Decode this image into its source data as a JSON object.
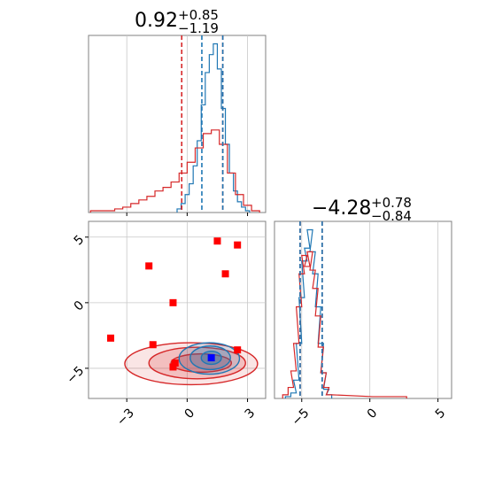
{
  "chart_data": [
    {
      "type": "histogram",
      "panel": "marginal-x",
      "title": {
        "value": "0.92",
        "upper": "+0.85",
        "lower": "−1.19"
      },
      "xlim": [
        -4.9,
        3.9
      ],
      "grid": true,
      "x_ticks": [
        -3,
        0,
        3
      ],
      "series": [
        {
          "color": "#1f77b4",
          "style": "step",
          "bins": [
            [
              -0.4,
              0.02
            ],
            [
              -0.2,
              0.05
            ],
            [
              0.0,
              0.1
            ],
            [
              0.2,
              0.16
            ],
            [
              0.4,
              0.26
            ],
            [
              0.6,
              0.4
            ],
            [
              0.8,
              0.6
            ],
            [
              1.0,
              0.78
            ],
            [
              1.2,
              0.88
            ],
            [
              1.4,
              0.94
            ],
            [
              1.6,
              0.8
            ],
            [
              1.8,
              0.58
            ],
            [
              2.0,
              0.38
            ],
            [
              2.2,
              0.22
            ],
            [
              2.4,
              0.12
            ],
            [
              2.6,
              0.06
            ],
            [
              2.8,
              0.03
            ],
            [
              3.0,
              0.01
            ]
          ]
        },
        {
          "color": "#d62728",
          "style": "step",
          "bins": [
            [
              -4.6,
              0.01
            ],
            [
              -4.2,
              0.01
            ],
            [
              -3.8,
              0.01
            ],
            [
              -3.4,
              0.02
            ],
            [
              -3.0,
              0.03
            ],
            [
              -2.6,
              0.05
            ],
            [
              -2.2,
              0.07
            ],
            [
              -1.8,
              0.09
            ],
            [
              -1.4,
              0.12
            ],
            [
              -1.0,
              0.14
            ],
            [
              -0.6,
              0.17
            ],
            [
              -0.2,
              0.22
            ],
            [
              0.2,
              0.28
            ],
            [
              0.6,
              0.36
            ],
            [
              1.0,
              0.44
            ],
            [
              1.4,
              0.46
            ],
            [
              1.8,
              0.38
            ],
            [
              2.2,
              0.22
            ],
            [
              2.6,
              0.1
            ],
            [
              3.0,
              0.04
            ],
            [
              3.4,
              0.01
            ]
          ]
        }
      ],
      "quantile_lines": [
        {
          "x": -0.27,
          "color": "#d62728"
        },
        {
          "x": 0.73,
          "color": "#1f77b4"
        },
        {
          "x": 1.77,
          "color": "#d62728"
        },
        {
          "x": 1.77,
          "color": "#1f77b4"
        }
      ]
    },
    {
      "type": "histogram",
      "panel": "marginal-y",
      "title": {
        "value": "−4.28",
        "upper": "+0.78",
        "lower": "−0.84"
      },
      "xlim": [
        -7.0,
        6.0
      ],
      "grid": true,
      "x_ticks": [
        -5,
        0,
        5
      ],
      "series": [
        {
          "color": "#1f77b4",
          "style": "step",
          "bins": [
            [
              -6.0,
              0.01
            ],
            [
              -5.6,
              0.03
            ],
            [
              -5.4,
              0.1
            ],
            [
              -5.2,
              0.3
            ],
            [
              -5.0,
              0.55
            ],
            [
              -4.8,
              0.75
            ],
            [
              -4.6,
              0.82
            ],
            [
              -4.4,
              0.92
            ],
            [
              -4.2,
              0.8
            ],
            [
              -4.0,
              0.68
            ],
            [
              -3.8,
              0.5
            ],
            [
              -3.6,
              0.3
            ],
            [
              -3.4,
              0.14
            ],
            [
              -3.2,
              0.05
            ],
            [
              -3.0,
              0.02
            ]
          ]
        },
        {
          "color": "#d62728",
          "style": "step",
          "bins": [
            [
              -6.2,
              0.02
            ],
            [
              -5.8,
              0.06
            ],
            [
              -5.6,
              0.15
            ],
            [
              -5.4,
              0.3
            ],
            [
              -5.2,
              0.5
            ],
            [
              -5.0,
              0.68
            ],
            [
              -4.8,
              0.78
            ],
            [
              -4.6,
              0.72
            ],
            [
              -4.4,
              0.8
            ],
            [
              -4.2,
              0.7
            ],
            [
              -4.0,
              0.6
            ],
            [
              -3.8,
              0.45
            ],
            [
              -3.6,
              0.28
            ],
            [
              -3.4,
              0.14
            ],
            [
              -3.2,
              0.06
            ],
            [
              -3.0,
              0.02
            ],
            [
              0.4,
              0.01
            ],
            [
              2.5,
              0.01
            ]
          ]
        }
      ],
      "quantile_lines": [
        {
          "x": -5.12,
          "color": "#d62728"
        },
        {
          "x": -5.12,
          "color": "#1f77b4"
        },
        {
          "x": -3.5,
          "color": "#d62728"
        },
        {
          "x": -3.5,
          "color": "#1f77b4"
        }
      ]
    },
    {
      "type": "scatter",
      "panel": "joint",
      "xlim": [
        -4.9,
        3.9
      ],
      "ylim": [
        -7.3,
        6.2
      ],
      "grid": true,
      "x_ticks": [
        -3,
        0,
        3
      ],
      "y_ticks": [
        -5,
        0,
        5
      ],
      "markers": [
        {
          "x": 1.5,
          "y": 4.7,
          "color": "#ff0000"
        },
        {
          "x": 2.5,
          "y": 4.4,
          "color": "#ff0000"
        },
        {
          "x": -1.9,
          "y": 2.8,
          "color": "#ff0000"
        },
        {
          "x": 1.9,
          "y": 2.2,
          "color": "#ff0000"
        },
        {
          "x": -0.7,
          "y": 0.0,
          "color": "#ff0000"
        },
        {
          "x": -3.8,
          "y": -2.7,
          "color": "#ff0000"
        },
        {
          "x": -1.7,
          "y": -3.2,
          "color": "#ff0000"
        },
        {
          "x": 2.5,
          "y": -3.6,
          "color": "#ff0000"
        },
        {
          "x": -0.6,
          "y": -4.6,
          "color": "#ff0000"
        },
        {
          "x": -0.7,
          "y": -4.9,
          "color": "#ff0000"
        },
        {
          "x": 1.2,
          "y": -4.2,
          "color": "#0000ff"
        }
      ],
      "contours": [
        {
          "color": "#d62728",
          "cx": 0.7,
          "cy": -4.6,
          "rx": 1.5,
          "ry": 0.7,
          "alpha": 0.3
        },
        {
          "color": "#d62728",
          "cx": 0.5,
          "cy": -4.6,
          "rx": 2.4,
          "ry": 1.2,
          "alpha": 0.2
        },
        {
          "color": "#d62728",
          "cx": 0.2,
          "cy": -4.65,
          "rx": 3.3,
          "ry": 1.6,
          "alpha": 0.12
        },
        {
          "color": "#1f77b4",
          "cx": 1.2,
          "cy": -4.2,
          "rx": 0.5,
          "ry": 0.5,
          "alpha": 0.35
        },
        {
          "color": "#1f77b4",
          "cx": 1.15,
          "cy": -4.2,
          "rx": 1.0,
          "ry": 0.9,
          "alpha": 0.25
        },
        {
          "color": "#1f77b4",
          "cx": 1.1,
          "cy": -4.25,
          "rx": 1.5,
          "ry": 1.2,
          "alpha": 0.15
        }
      ]
    }
  ]
}
